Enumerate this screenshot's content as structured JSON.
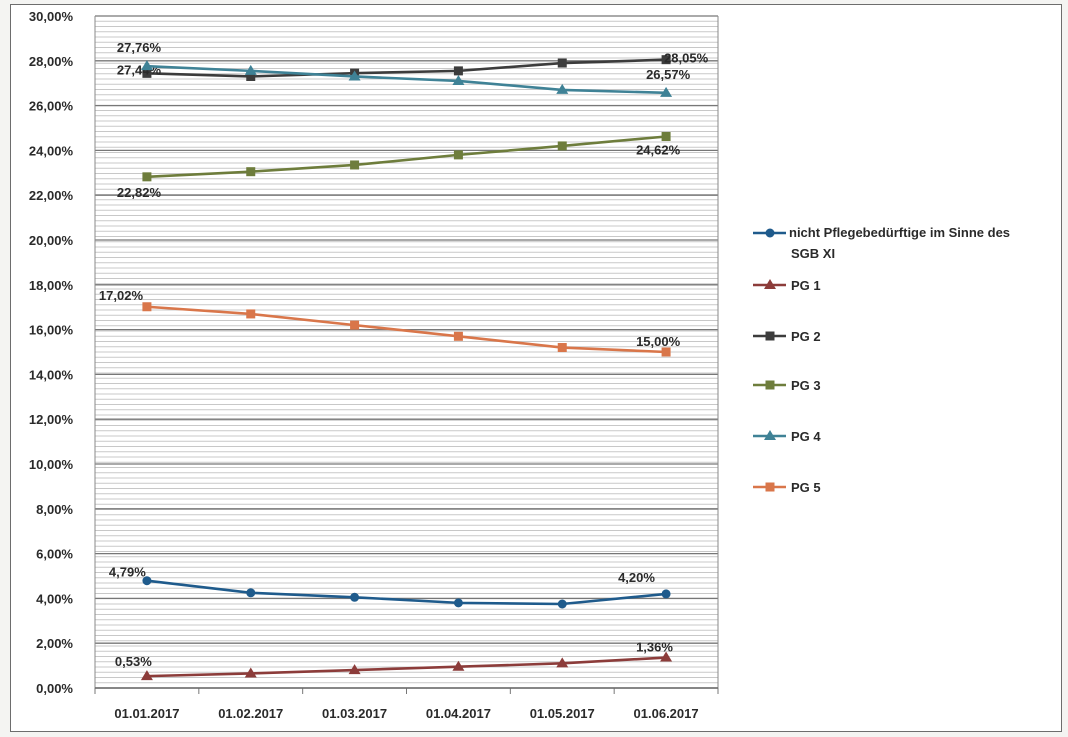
{
  "chart_data": {
    "type": "line",
    "title": "",
    "xlabel": "",
    "ylabel": "",
    "x": [
      "01.01.2017",
      "01.02.2017",
      "01.03.2017",
      "01.04.2017",
      "01.05.2017",
      "01.06.2017"
    ],
    "ylim": [
      0,
      30
    ],
    "y_ticks": [
      "0,00%",
      "2,00%",
      "4,00%",
      "6,00%",
      "8,00%",
      "10,00%",
      "12,00%",
      "14,00%",
      "16,00%",
      "18,00%",
      "20,00%",
      "22,00%",
      "24,00%",
      "26,00%",
      "28,00%",
      "30,00%"
    ],
    "grid": true,
    "legend_position": "right",
    "series": [
      {
        "name": "nicht Pflegebedürftige im Sinne des SGB XI",
        "color": "#1f5b8c",
        "marker": "circle",
        "values": [
          4.79,
          4.25,
          4.05,
          3.8,
          3.75,
          4.2
        ],
        "labels": [
          {
            "index": 0,
            "text": "4,79%"
          },
          {
            "index": 5,
            "text": "4,20%"
          }
        ]
      },
      {
        "name": "PG 1",
        "color": "#8c3c3a",
        "marker": "triangle",
        "values": [
          0.53,
          0.65,
          0.8,
          0.95,
          1.1,
          1.36
        ],
        "labels": [
          {
            "index": 0,
            "text": "0,53%"
          },
          {
            "index": 5,
            "text": "1,36%"
          }
        ]
      },
      {
        "name": "PG 2",
        "color": "#3c3c3c",
        "marker": "square",
        "values": [
          27.44,
          27.3,
          27.45,
          27.55,
          27.9,
          28.05
        ],
        "labels": [
          {
            "index": 0,
            "text": "27,44%"
          },
          {
            "index": 5,
            "text": "28,05%"
          }
        ]
      },
      {
        "name": "PG 3",
        "color": "#6e7d3c",
        "marker": "square",
        "values": [
          22.82,
          23.05,
          23.35,
          23.8,
          24.2,
          24.62
        ],
        "labels": [
          {
            "index": 0,
            "text": "22,82%"
          },
          {
            "index": 5,
            "text": "24,62%"
          }
        ]
      },
      {
        "name": "PG 4",
        "color": "#3f8296",
        "marker": "triangle",
        "values": [
          27.76,
          27.55,
          27.3,
          27.1,
          26.7,
          26.57
        ],
        "labels": [
          {
            "index": 0,
            "text": "27,76%"
          },
          {
            "index": 5,
            "text": "26,57%"
          }
        ]
      },
      {
        "name": "PG 5",
        "color": "#d9764a",
        "marker": "square",
        "values": [
          17.02,
          16.7,
          16.2,
          15.7,
          15.2,
          15.0
        ],
        "labels": [
          {
            "index": 0,
            "text": "17,02%"
          },
          {
            "index": 5,
            "text": "15,00%"
          }
        ]
      }
    ]
  }
}
